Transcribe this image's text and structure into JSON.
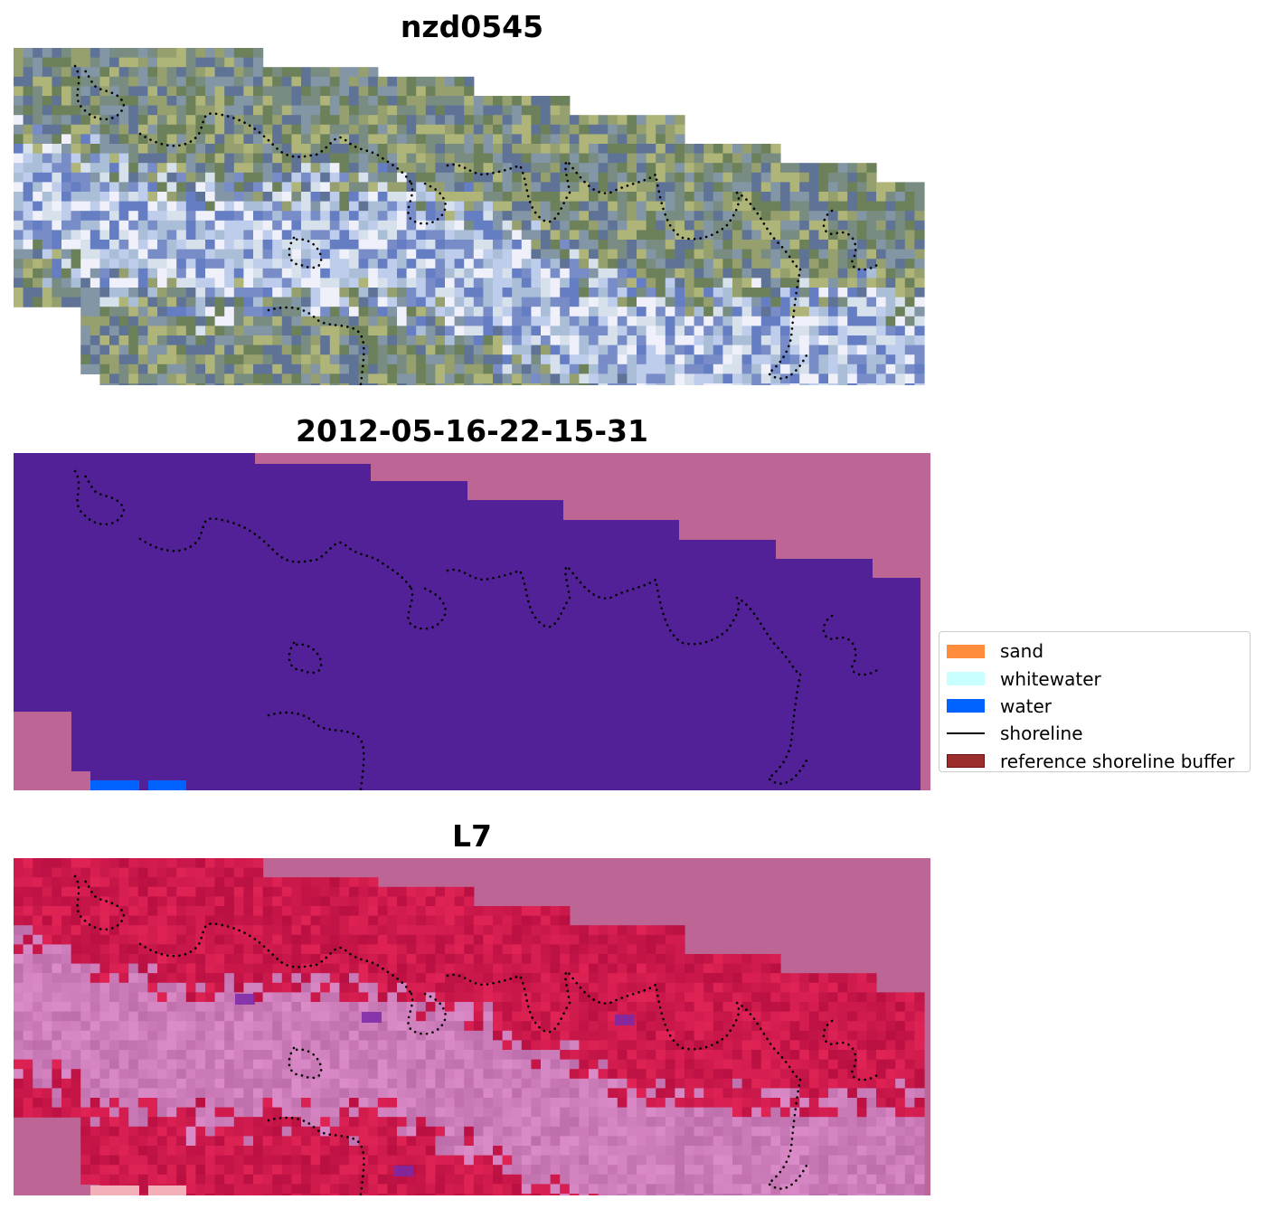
{
  "panels": [
    {
      "title": "nzd0545",
      "kind": "rgb"
    },
    {
      "title": "2012-05-16-22-15-31",
      "kind": "classified"
    },
    {
      "title": "L7",
      "kind": "ndwi"
    }
  ],
  "legend": {
    "items": [
      {
        "label": "sand",
        "color": "#ff8c3c"
      },
      {
        "label": "whitewater",
        "color": "#c8ffff"
      },
      {
        "label": "water",
        "color": "#0062ff"
      },
      {
        "label": "shoreline",
        "color": "#000000"
      },
      {
        "label": "reference shoreline buffer",
        "color": "#9b2d2d",
        "edge": "#6e1010"
      }
    ]
  },
  "colors": {
    "background_fill": "#bd6695",
    "classified_fill": "#522198",
    "water": "#0062ff",
    "ndwi_land": "#c81450",
    "ndwi_water": "#c97ab0"
  }
}
